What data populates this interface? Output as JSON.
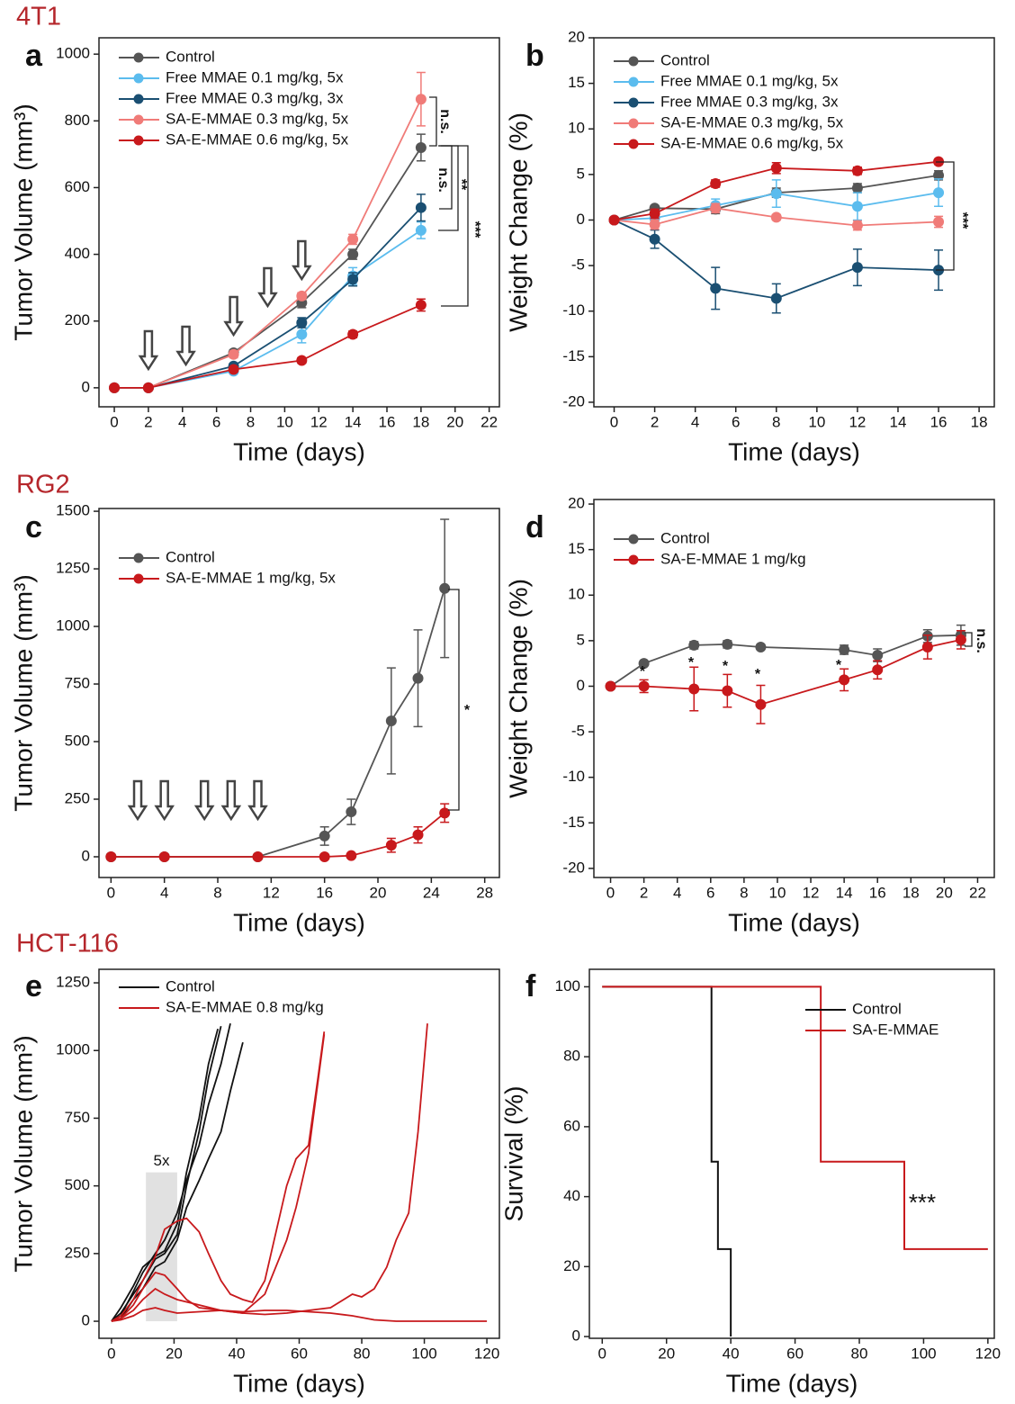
{
  "chart_data": [
    {
      "type": "line",
      "group": "4T1",
      "panel": "a",
      "xlabel": "Time (days)",
      "ylabel": "Tumor Volume (mm³)",
      "x": [
        0,
        2,
        7,
        11,
        14,
        18
      ],
      "xlim": [
        -0.9,
        22.6
      ],
      "ylim": [
        -57,
        1049
      ],
      "xticks": [
        0,
        2,
        4,
        6,
        8,
        10,
        12,
        14,
        16,
        18,
        20,
        22
      ],
      "yticks": [
        0,
        200,
        400,
        600,
        800,
        1000
      ],
      "legend": "upper left",
      "series": [
        {
          "name": "Control",
          "color": "#555555",
          "values": [
            0,
            0,
            105,
            255,
            400,
            720
          ],
          "errors": [
            0,
            0,
            8,
            15,
            15,
            40
          ]
        },
        {
          "name": "Free MMAE 0.1 mg/kg, 5x",
          "color": "#5bbcee",
          "values": [
            0,
            0,
            50,
            160,
            335,
            472
          ],
          "errors": [
            0,
            0,
            8,
            25,
            25,
            25
          ]
        },
        {
          "name": "Free MMAE 0.3 mg/kg, 3x",
          "color": "#1a4f72",
          "values": [
            0,
            0,
            65,
            195,
            325,
            540
          ],
          "errors": [
            0,
            0,
            8,
            15,
            20,
            40
          ]
        },
        {
          "name": "SA-E-MMAE 0.3 mg/kg, 5x",
          "color": "#f07b78",
          "values": [
            0,
            0,
            100,
            275,
            445,
            865
          ],
          "errors": [
            0,
            0,
            10,
            10,
            15,
            80
          ]
        },
        {
          "name": "SA-E-MMAE 0.6 mg/kg, 5x",
          "color": "#c8191c",
          "values": [
            0,
            0,
            55,
            82,
            160,
            248
          ],
          "errors": [
            0,
            0,
            5,
            8,
            10,
            18
          ]
        }
      ],
      "doses": [
        2,
        4.2,
        7,
        9,
        11
      ],
      "annotations": [
        "n.s.",
        "n.s.",
        "**",
        "***"
      ]
    },
    {
      "type": "line",
      "panel": "b",
      "xlabel": "Time (days)",
      "ylabel": "Weight Change (%)",
      "x": [
        0,
        2,
        5,
        8,
        12,
        16
      ],
      "xlim": [
        -1,
        18.75
      ],
      "ylim": [
        -20.5,
        20
      ],
      "xticks": [
        0,
        2,
        4,
        6,
        8,
        10,
        12,
        14,
        16,
        18
      ],
      "yticks": [
        -20,
        -15,
        -10,
        -5,
        0,
        5,
        10,
        15,
        20
      ],
      "legend": "upper left",
      "series": [
        {
          "name": "Control",
          "color": "#555555",
          "values": [
            0,
            1.3,
            1.2,
            3.0,
            3.5,
            4.9
          ],
          "errors": [
            0,
            0.3,
            0.5,
            0.5,
            0.5,
            0.5
          ]
        },
        {
          "name": "Free MMAE 0.1 mg/kg, 5x",
          "color": "#5bbcee",
          "values": [
            0,
            0.2,
            1.6,
            2.9,
            1.5,
            3.0
          ],
          "errors": [
            0,
            0.5,
            0.7,
            1.5,
            1.5,
            1.5
          ]
        },
        {
          "name": "Free MMAE 0.3 mg/kg, 3x",
          "color": "#1a4f72",
          "values": [
            0,
            -2.1,
            -7.5,
            -8.6,
            -5.2,
            -5.5
          ],
          "errors": [
            0,
            1,
            2.3,
            1.6,
            2,
            2.2
          ]
        },
        {
          "name": "SA-E-MMAE 0.3 mg/kg, 5x",
          "color": "#f07b78",
          "values": [
            0,
            -0.5,
            1.3,
            0.3,
            -0.6,
            -0.2
          ],
          "errors": [
            0,
            0.5,
            0.5,
            0.3,
            0.5,
            0.6
          ]
        },
        {
          "name": "SA-E-MMAE 0.6 mg/kg, 5x",
          "color": "#c8191c",
          "values": [
            0,
            0.7,
            4.0,
            5.7,
            5.4,
            6.4
          ],
          "errors": [
            0,
            0.5,
            0.4,
            0.6,
            0.4,
            0.3
          ]
        }
      ],
      "annotations": [
        "***"
      ]
    },
    {
      "type": "line",
      "group": "RG2",
      "panel": "c",
      "xlabel": "Time (days)",
      "ylabel": "Tumor Volume (mm³)",
      "x": [
        0,
        4,
        11,
        16,
        18,
        21,
        23,
        25
      ],
      "xlim": [
        -0.9,
        29.1
      ],
      "ylim": [
        -90,
        1512
      ],
      "xticks": [
        0,
        4,
        8,
        12,
        16,
        20,
        24,
        28
      ],
      "yticks": [
        0,
        250,
        500,
        750,
        1000,
        1250,
        1500
      ],
      "legend": "upper left",
      "series": [
        {
          "name": "Control",
          "color": "#555555",
          "values": [
            0,
            0,
            0,
            90,
            195,
            590,
            775,
            1165
          ],
          "errors": [
            0,
            0,
            0,
            40,
            55,
            230,
            210,
            300
          ]
        },
        {
          "name": "SA-E-MMAE 1 mg/kg, 5x",
          "color": "#c8191c",
          "values": [
            0,
            0,
            0,
            0,
            5,
            50,
            95,
            190
          ],
          "errors": [
            0,
            0,
            0,
            0,
            5,
            30,
            35,
            40
          ]
        }
      ],
      "doses": [
        2,
        4,
        7,
        9,
        11
      ],
      "annotations": [
        "*"
      ]
    },
    {
      "type": "line",
      "panel": "d",
      "xlabel": "Time (days)",
      "ylabel": "Weight Change (%)",
      "x": [
        0,
        2,
        5,
        7,
        9,
        14,
        16,
        19,
        21
      ],
      "xlim": [
        -1,
        23
      ],
      "ylim": [
        -21,
        20.5
      ],
      "xticks": [
        0,
        2,
        4,
        6,
        8,
        10,
        12,
        14,
        16,
        18,
        20,
        22
      ],
      "yticks": [
        -20,
        -15,
        -10,
        -5,
        0,
        5,
        10,
        15,
        20
      ],
      "legend": "upper left",
      "series": [
        {
          "name": "Control",
          "color": "#555555",
          "values": [
            0,
            2.5,
            4.5,
            4.6,
            4.3,
            4.0,
            3.4,
            5.5,
            5.6
          ],
          "errors": [
            0,
            0.2,
            0.4,
            0.4,
            0.2,
            0.5,
            0.7,
            0.7,
            1.1
          ]
        },
        {
          "name": "SA-E-MMAE 1 mg/kg",
          "color": "#c8191c",
          "values": [
            0,
            0,
            -0.3,
            -0.5,
            -2,
            0.7,
            1.8,
            4.3,
            5.1
          ],
          "errors": [
            0,
            0.7,
            2.4,
            1.8,
            2.1,
            1.2,
            1.0,
            1.3,
            1.0
          ]
        }
      ],
      "annotations": [
        "*",
        "*",
        "*",
        "*",
        "*",
        "n.s."
      ]
    },
    {
      "type": "line",
      "group": "HCT-116",
      "panel": "e",
      "xlabel": "Time (days)",
      "ylabel": "Tumor Volume (mm³)",
      "xlim": [
        -4,
        124
      ],
      "ylim": [
        -63,
        1300
      ],
      "xticks": [
        0,
        20,
        40,
        60,
        80,
        100,
        120
      ],
      "yticks": [
        0,
        250,
        500,
        750,
        1000,
        1250
      ],
      "legend": "upper left",
      "dose_window": {
        "range": [
          11,
          21
        ],
        "height": 550,
        "label": "5x"
      },
      "series": [
        {
          "name": "Control",
          "color": "#111111",
          "lines": [
            {
              "x": [
                0,
                3,
                7,
                10,
                14,
                17,
                21,
                24,
                28,
                31,
                35
              ],
              "values": [
                0,
                30,
                100,
                150,
                230,
                250,
                320,
                500,
                700,
                900,
                1090
              ]
            },
            {
              "x": [
                0,
                3,
                7,
                10,
                14,
                17,
                21,
                24,
                28,
                31,
                34
              ],
              "values": [
                0,
                50,
                130,
                200,
                240,
                260,
                360,
                550,
                750,
                950,
                1080
              ]
            },
            {
              "x": [
                0,
                3,
                7,
                10,
                14,
                17,
                21,
                24,
                28,
                31,
                35,
                38
              ],
              "values": [
                0,
                20,
                110,
                180,
                250,
                300,
                400,
                520,
                650,
                800,
                950,
                1100
              ]
            },
            {
              "x": [
                0,
                3,
                7,
                10,
                14,
                17,
                21,
                24,
                28,
                31,
                35,
                38,
                42
              ],
              "values": [
                0,
                10,
                80,
                120,
                200,
                220,
                300,
                420,
                520,
                600,
                700,
                850,
                1030
              ]
            }
          ]
        },
        {
          "name": "SA-E-MMAE 0.8 mg/kg",
          "color": "#c8191c",
          "lines": [
            {
              "x": [
                0,
                3,
                7,
                10,
                14,
                17,
                21,
                24,
                28,
                31,
                35,
                38,
                42,
                45,
                49,
                52,
                56,
                59,
                63,
                66,
                68
              ],
              "values": [
                0,
                20,
                80,
                150,
                240,
                340,
                370,
                380,
                330,
                250,
                150,
                100,
                80,
                70,
                150,
                300,
                500,
                600,
                650,
                900,
                1070
              ]
            },
            {
              "x": [
                0,
                3,
                7,
                10,
                14,
                17,
                21,
                24,
                28,
                35,
                42,
                49,
                56,
                59,
                63,
                68
              ],
              "values": [
                0,
                10,
                60,
                120,
                180,
                170,
                120,
                80,
                50,
                40,
                30,
                100,
                300,
                420,
                620,
                1060
              ]
            },
            {
              "x": [
                0,
                3,
                7,
                10,
                14,
                17,
                21,
                28,
                35,
                42,
                49,
                56,
                63,
                70,
                77,
                80,
                84,
                88,
                91,
                95,
                98,
                101
              ],
              "values": [
                0,
                10,
                40,
                80,
                120,
                100,
                80,
                60,
                40,
                30,
                25,
                30,
                40,
                50,
                100,
                90,
                120,
                200,
                300,
                400,
                700,
                1100
              ]
            },
            {
              "x": [
                0,
                3,
                7,
                10,
                14,
                17,
                21,
                28,
                35,
                42,
                49,
                56,
                63,
                70,
                77,
                84,
                91,
                98,
                105,
                112,
                120
              ],
              "values": [
                0,
                5,
                20,
                40,
                50,
                40,
                30,
                35,
                40,
                35,
                40,
                40,
                35,
                30,
                20,
                5,
                0,
                0,
                0,
                0,
                0
              ]
            }
          ]
        }
      ]
    },
    {
      "type": "step",
      "panel": "f",
      "xlabel": "Time (days)",
      "ylabel": "Survival (%)",
      "xlim": [
        -4,
        122
      ],
      "ylim": [
        -0.5,
        105
      ],
      "xticks": [
        0,
        20,
        40,
        60,
        80,
        100,
        120
      ],
      "yticks": [
        0,
        20,
        40,
        60,
        80,
        100
      ],
      "legend": "upper right",
      "series": [
        {
          "name": "Control",
          "color": "#111111",
          "x": [
            0,
            34,
            36,
            40
          ],
          "values": [
            100,
            50,
            25,
            0
          ]
        },
        {
          "name": "SA-E-MMAE",
          "color": "#c8191c",
          "x": [
            0,
            68,
            94,
            120
          ],
          "values": [
            100,
            50,
            25,
            25
          ]
        }
      ],
      "annotations": [
        "***"
      ]
    }
  ]
}
